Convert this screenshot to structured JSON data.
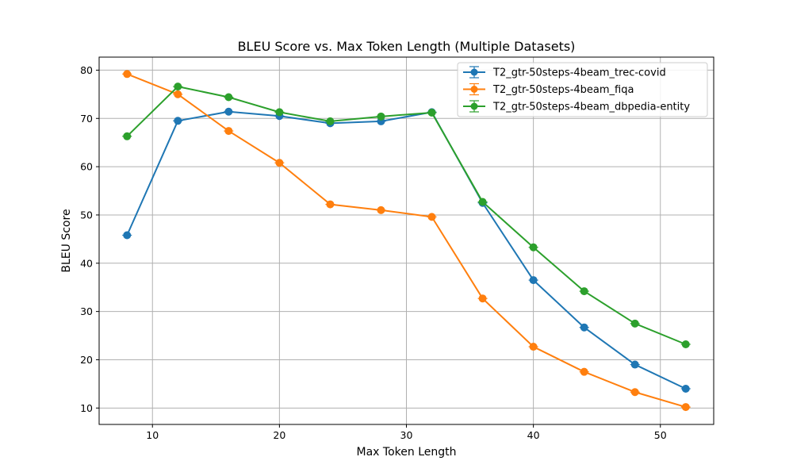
{
  "chart_data": {
    "type": "line",
    "title": "BLEU Score vs. Max Token Length (Multiple Datasets)",
    "xlabel": "Max Token Length",
    "ylabel": "BLEU Score",
    "xlim": [
      5.8,
      54.2
    ],
    "ylim": [
      6.6,
      82.7
    ],
    "xticks": [
      10,
      20,
      30,
      40,
      50
    ],
    "yticks": [
      10,
      20,
      30,
      40,
      50,
      60,
      70,
      80
    ],
    "grid": true,
    "error_bars": true,
    "legend_position": "upper right",
    "x": [
      8,
      12,
      16,
      20,
      24,
      28,
      32,
      36,
      40,
      44,
      48,
      52
    ],
    "series": [
      {
        "name": "T2_gtr-50steps-4beam_trec-covid",
        "color": "#1f77b4",
        "values": [
          45.8,
          69.5,
          71.4,
          70.5,
          69.0,
          69.4,
          71.3,
          52.5,
          36.5,
          26.7,
          19.0,
          14.0
        ]
      },
      {
        "name": "T2_gtr-50steps-4beam_fiqa",
        "color": "#ff7f0e",
        "values": [
          79.2,
          75.0,
          67.4,
          60.8,
          52.2,
          51.0,
          49.6,
          32.7,
          22.7,
          17.5,
          13.3,
          10.2
        ]
      },
      {
        "name": "T2_gtr-50steps-4beam_dbpedia-entity",
        "color": "#2ca02c",
        "values": [
          66.3,
          76.6,
          74.4,
          71.3,
          69.4,
          70.4,
          71.2,
          52.7,
          43.3,
          34.2,
          27.5,
          23.2
        ]
      }
    ]
  }
}
